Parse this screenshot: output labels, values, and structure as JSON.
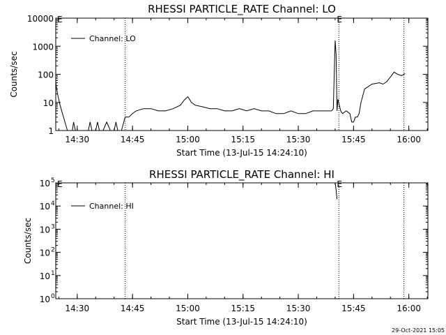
{
  "chart_data": [
    {
      "type": "line",
      "title": "RHESSI PARTICLE_RATE Channel: LO",
      "xlabel": "Start Time (13-Jul-15 14:24:10)",
      "ylabel": "Counts/sec",
      "yscale": "log",
      "xlim": [
        "14:24:10",
        "16:05:10"
      ],
      "ylim": [
        1,
        10000
      ],
      "x_ticks": [
        "14:30",
        "14:45",
        "15:00",
        "15:15",
        "15:30",
        "15:45",
        "16:00"
      ],
      "y_ticks": [
        "1",
        "10",
        "100",
        "1000",
        "10000"
      ],
      "legend": {
        "label": "Channel: LO",
        "placement": "top-left"
      },
      "markers": [
        {
          "time": "14:43:00",
          "label": ""
        },
        {
          "time": "15:41:00",
          "label": "E"
        },
        {
          "time": "15:58:40",
          "label": ""
        }
      ],
      "series": [
        {
          "name": "Channel: LO",
          "x": [
            "14:24:10",
            "14:24:40",
            "14:25:20",
            "14:26:00",
            "14:26:40",
            "14:27:20",
            "14:28:00",
            "14:28:40",
            "14:29:00",
            "14:29:30",
            "14:30:10",
            "14:31:00",
            "14:32:00",
            "14:33:00",
            "14:33:30",
            "14:34:00",
            "14:35:00",
            "14:35:30",
            "14:36:00",
            "14:36:30",
            "14:37:00",
            "14:38:00",
            "14:39:00",
            "14:40:00",
            "14:40:30",
            "14:41:00",
            "14:42:00",
            "14:43:00",
            "14:44:00",
            "14:45:00",
            "14:46:00",
            "14:48:00",
            "14:50:00",
            "14:52:00",
            "14:54:00",
            "14:56:00",
            "14:58:00",
            "14:59:00",
            "15:00:00",
            "15:01:00",
            "15:02:00",
            "15:04:00",
            "15:06:00",
            "15:08:00",
            "15:10:00",
            "15:12:00",
            "15:14:00",
            "15:16:00",
            "15:18:00",
            "15:20:00",
            "15:22:00",
            "15:24:00",
            "15:26:00",
            "15:28:00",
            "15:30:00",
            "15:32:00",
            "15:34:00",
            "15:36:00",
            "15:38:00",
            "15:39:00",
            "15:39:30",
            "15:40:00",
            "15:40:15",
            "15:40:30",
            "15:40:45",
            "15:41:30",
            "15:42:00",
            "15:43:00",
            "15:44:00",
            "15:44:30",
            "15:45:00",
            "15:45:30",
            "15:46:00",
            "15:46:30",
            "15:47:00",
            "15:48:00",
            "15:50:00",
            "15:52:00",
            "15:53:00",
            "15:54:00",
            "15:55:00",
            "15:56:00",
            "15:57:00",
            "15:58:00",
            "15:59:00"
          ],
          "values": [
            50,
            20,
            8,
            4,
            2,
            1,
            1,
            1,
            2,
            1,
            1,
            1,
            1,
            1,
            2,
            1,
            1,
            2,
            1,
            1,
            1,
            2,
            1,
            1,
            2,
            1,
            1,
            3,
            3,
            4,
            5,
            6,
            6,
            5,
            5,
            6,
            8,
            12,
            16,
            10,
            8,
            7,
            6,
            6,
            5,
            5,
            6,
            5,
            6,
            5,
            5,
            4,
            4,
            5,
            4,
            4,
            5,
            5,
            5,
            5,
            6,
            1600,
            500,
            5,
            13,
            5,
            4,
            5,
            4,
            2,
            2,
            3,
            3,
            4,
            10,
            30,
            45,
            50,
            45,
            55,
            80,
            120,
            100,
            90,
            105
          ]
        }
      ]
    },
    {
      "type": "line",
      "title": "RHESSI PARTICLE_RATE Channel: HI",
      "xlabel": "Start Time (13-Jul-15 14:24:10)",
      "ylabel": "Counts/sec",
      "yscale": "log",
      "xlim": [
        "14:24:10",
        "16:05:10"
      ],
      "ylim": [
        1,
        100000
      ],
      "x_ticks": [
        "14:30",
        "14:45",
        "15:00",
        "15:15",
        "15:30",
        "15:45",
        "16:00"
      ],
      "y_ticks": [
        {
          "base": "10",
          "exp": "0"
        },
        {
          "base": "10",
          "exp": "1"
        },
        {
          "base": "10",
          "exp": "2"
        },
        {
          "base": "10",
          "exp": "3"
        },
        {
          "base": "10",
          "exp": "4"
        },
        {
          "base": "10",
          "exp": "5"
        }
      ],
      "legend": {
        "label": "Channel: HI",
        "placement": "top-left"
      },
      "markers": [
        {
          "time": "14:43:00",
          "label": ""
        },
        {
          "time": "15:41:00",
          "label": "E"
        },
        {
          "time": "15:58:40",
          "label": ""
        }
      ],
      "series": [
        {
          "name": "Channel: HI",
          "x": [
            "15:40:00",
            "15:40:15",
            "15:40:30"
          ],
          "values": [
            100000,
            50000,
            20000
          ]
        }
      ]
    }
  ],
  "timestamp": "29-Oct-2021 15:05"
}
